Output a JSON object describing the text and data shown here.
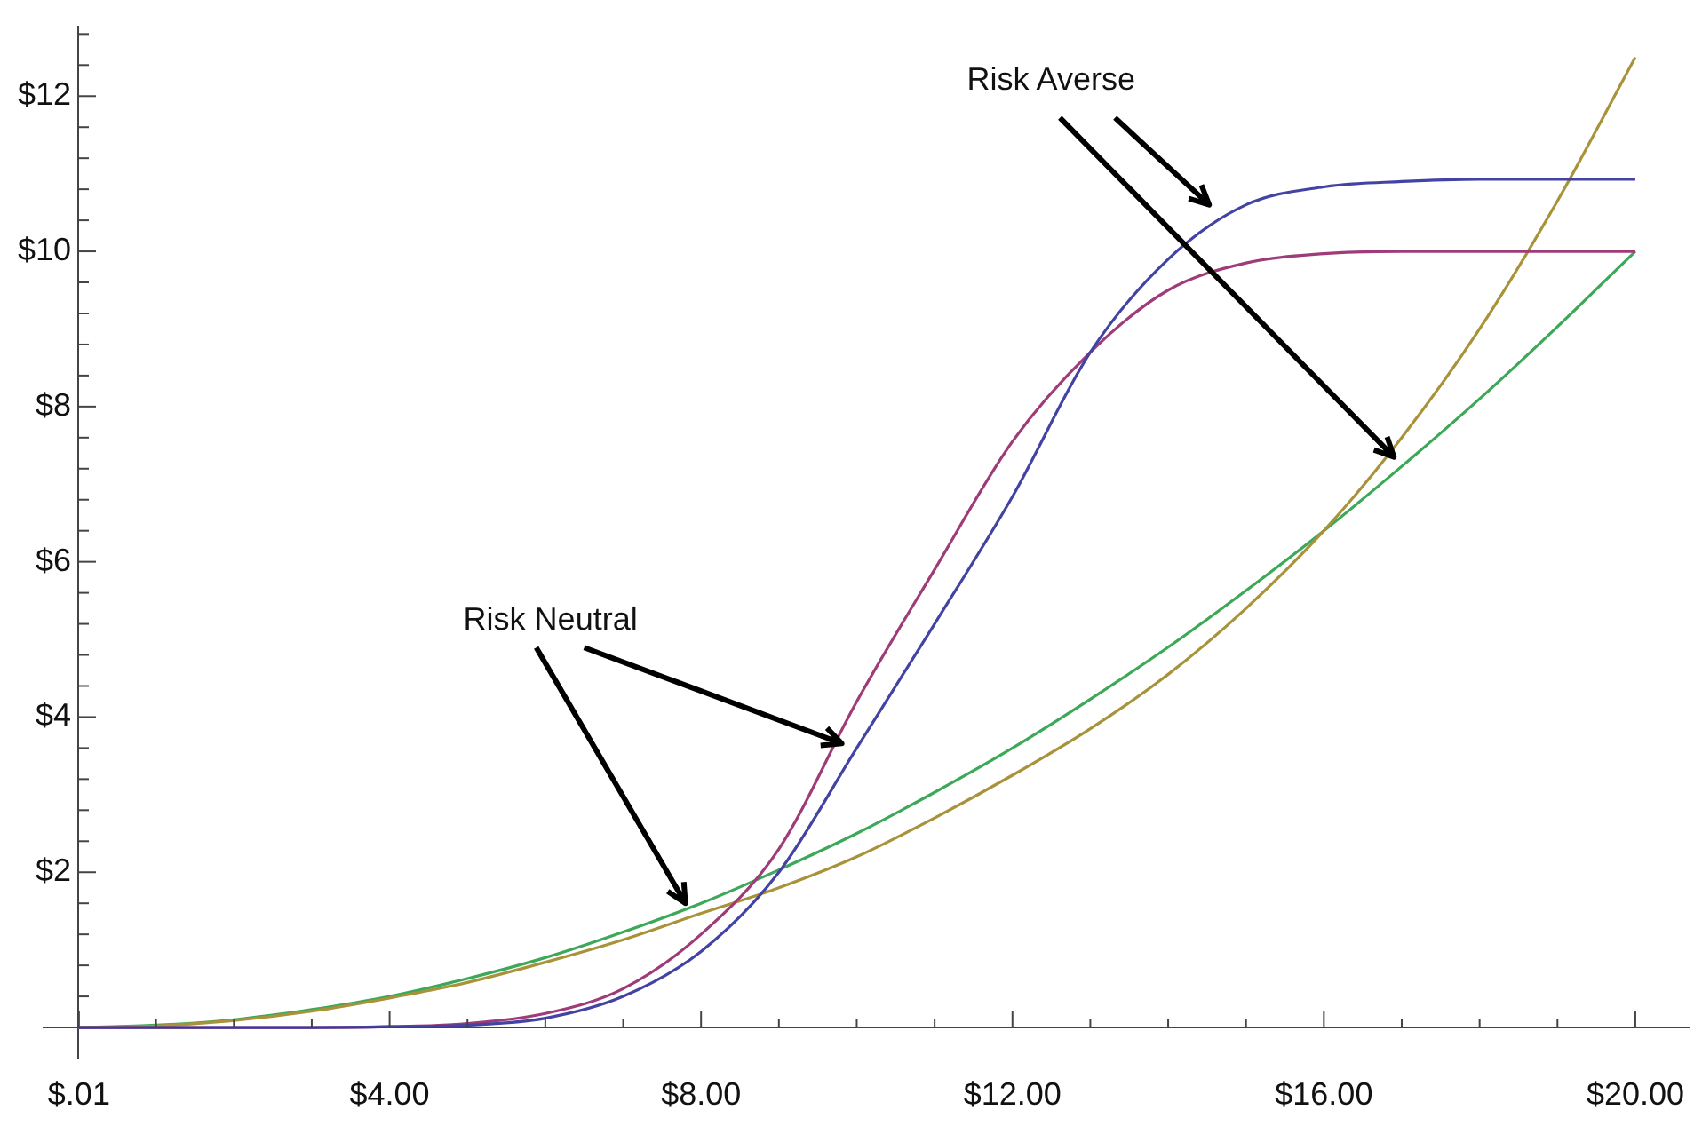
{
  "chart_data": {
    "type": "line",
    "x": [
      0,
      1,
      2,
      3,
      4,
      5,
      6,
      7,
      8,
      9,
      10,
      11,
      12,
      13,
      14,
      15,
      16,
      17,
      18,
      19,
      20
    ],
    "series": [
      {
        "color": "#4343a3",
        "values": [
          0,
          0,
          0,
          0,
          0.01,
          0.03,
          0.12,
          0.4,
          0.98,
          2.0,
          3.6,
          5.2,
          6.84,
          8.7,
          9.9,
          10.6,
          10.83,
          10.9,
          10.93,
          10.93,
          10.93
        ]
      },
      {
        "color": "#9e3b78",
        "values": [
          0,
          0,
          0,
          0,
          0.01,
          0.05,
          0.18,
          0.5,
          1.2,
          2.3,
          4.2,
          5.9,
          7.55,
          8.7,
          9.5,
          9.85,
          9.97,
          10,
          10,
          10,
          10
        ]
      },
      {
        "color": "#a8923a",
        "values": [
          0,
          0.02,
          0.09,
          0.21,
          0.38,
          0.58,
          0.84,
          1.13,
          1.47,
          1.8,
          2.2,
          2.7,
          3.25,
          3.85,
          4.55,
          5.4,
          6.4,
          7.6,
          9.0,
          10.65,
          12.5
        ]
      },
      {
        "color": "#3ca858",
        "values": [
          0,
          0.03,
          0.1,
          0.23,
          0.4,
          0.63,
          0.9,
          1.23,
          1.6,
          2.03,
          2.5,
          3.03,
          3.6,
          4.23,
          4.9,
          5.63,
          6.4,
          7.23,
          8.1,
          9.03,
          10
        ]
      }
    ],
    "xlim": [
      0,
      20.7
    ],
    "ylim": [
      -0.4,
      12.9
    ],
    "xticks": [
      {
        "value": 0.01,
        "label": "$.01"
      },
      {
        "value": 1,
        "label": null
      },
      {
        "value": 2,
        "label": null
      },
      {
        "value": 3,
        "label": null
      },
      {
        "value": 4,
        "label": "$4.00"
      },
      {
        "value": 5,
        "label": null
      },
      {
        "value": 6,
        "label": null
      },
      {
        "value": 7,
        "label": null
      },
      {
        "value": 8,
        "label": "$8.00"
      },
      {
        "value": 9,
        "label": null
      },
      {
        "value": 10,
        "label": null
      },
      {
        "value": 11,
        "label": null
      },
      {
        "value": 12,
        "label": "$12.00"
      },
      {
        "value": 13,
        "label": null
      },
      {
        "value": 14,
        "label": null
      },
      {
        "value": 15,
        "label": null
      },
      {
        "value": 16,
        "label": "$16.00"
      },
      {
        "value": 17,
        "label": null
      },
      {
        "value": 18,
        "label": null
      },
      {
        "value": 19,
        "label": null
      },
      {
        "value": 20,
        "label": "$20.00"
      }
    ],
    "yticks": [
      {
        "value": 0.4,
        "label": null
      },
      {
        "value": 0.8,
        "label": null
      },
      {
        "value": 1.2,
        "label": null
      },
      {
        "value": 1.6,
        "label": null
      },
      {
        "value": 2,
        "label": "$2"
      },
      {
        "value": 2.4,
        "label": null
      },
      {
        "value": 2.8,
        "label": null
      },
      {
        "value": 3.2,
        "label": null
      },
      {
        "value": 3.6,
        "label": null
      },
      {
        "value": 4,
        "label": "$4"
      },
      {
        "value": 4.4,
        "label": null
      },
      {
        "value": 4.8,
        "label": null
      },
      {
        "value": 5.2,
        "label": null
      },
      {
        "value": 5.6,
        "label": null
      },
      {
        "value": 6,
        "label": "$6"
      },
      {
        "value": 6.4,
        "label": null
      },
      {
        "value": 6.8,
        "label": null
      },
      {
        "value": 7.2,
        "label": null
      },
      {
        "value": 7.6,
        "label": null
      },
      {
        "value": 8,
        "label": "$8"
      },
      {
        "value": 8.4,
        "label": null
      },
      {
        "value": 8.8,
        "label": null
      },
      {
        "value": 9.2,
        "label": null
      },
      {
        "value": 9.6,
        "label": null
      },
      {
        "value": 10,
        "label": "$10"
      },
      {
        "value": 10.4,
        "label": null
      },
      {
        "value": 10.8,
        "label": null
      },
      {
        "value": 11.2,
        "label": null
      },
      {
        "value": 11.6,
        "label": null
      },
      {
        "value": 12,
        "label": "$12"
      },
      {
        "value": 12.4,
        "label": null
      },
      {
        "value": 12.8,
        "label": null
      }
    ],
    "annotations": [
      {
        "text": "Risk Neutral",
        "x": 7.8,
        "y": 1.6
      },
      {
        "text": "Risk Averse",
        "x": 16.9,
        "y": 7.35
      }
    ],
    "grid": false,
    "legend": false,
    "marker": "none",
    "line_style": "solid"
  }
}
